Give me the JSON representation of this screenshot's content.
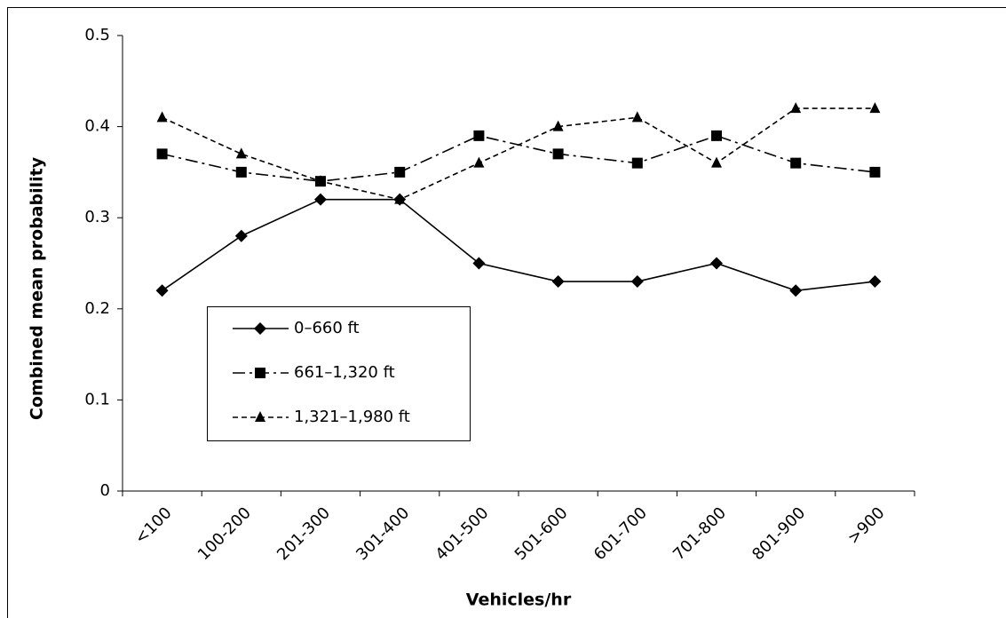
{
  "chart_data": {
    "type": "line",
    "categories": [
      "<100",
      "100-200",
      "201-300",
      "301-400",
      "401-500",
      "501-600",
      "601-700",
      "701-800",
      "801-900",
      ">900"
    ],
    "series": [
      {
        "name": "0–660 ft",
        "color": "#000000",
        "marker": "diamond",
        "dash": "solid",
        "values": [
          0.22,
          0.28,
          0.32,
          0.32,
          0.25,
          0.23,
          0.23,
          0.25,
          0.22,
          0.23
        ]
      },
      {
        "name": "661–1,320 ft",
        "color": "#000000",
        "marker": "square",
        "dash": "dashdot",
        "values": [
          0.37,
          0.35,
          0.34,
          0.35,
          0.39,
          0.37,
          0.36,
          0.39,
          0.36,
          0.35
        ]
      },
      {
        "name": "1,321–1,980 ft",
        "color": "#000000",
        "marker": "triangle",
        "dash": "dashed",
        "values": [
          0.41,
          0.37,
          0.34,
          0.32,
          0.36,
          0.4,
          0.41,
          0.36,
          0.42,
          0.42
        ]
      }
    ],
    "xlabel": "Vehicles/hr",
    "ylabel": "Combined mean probability",
    "ylim": [
      0,
      0.5
    ],
    "yticks": [
      0,
      0.1,
      0.2,
      0.3,
      0.4,
      0.5
    ],
    "grid": false,
    "legend": "lower left"
  }
}
